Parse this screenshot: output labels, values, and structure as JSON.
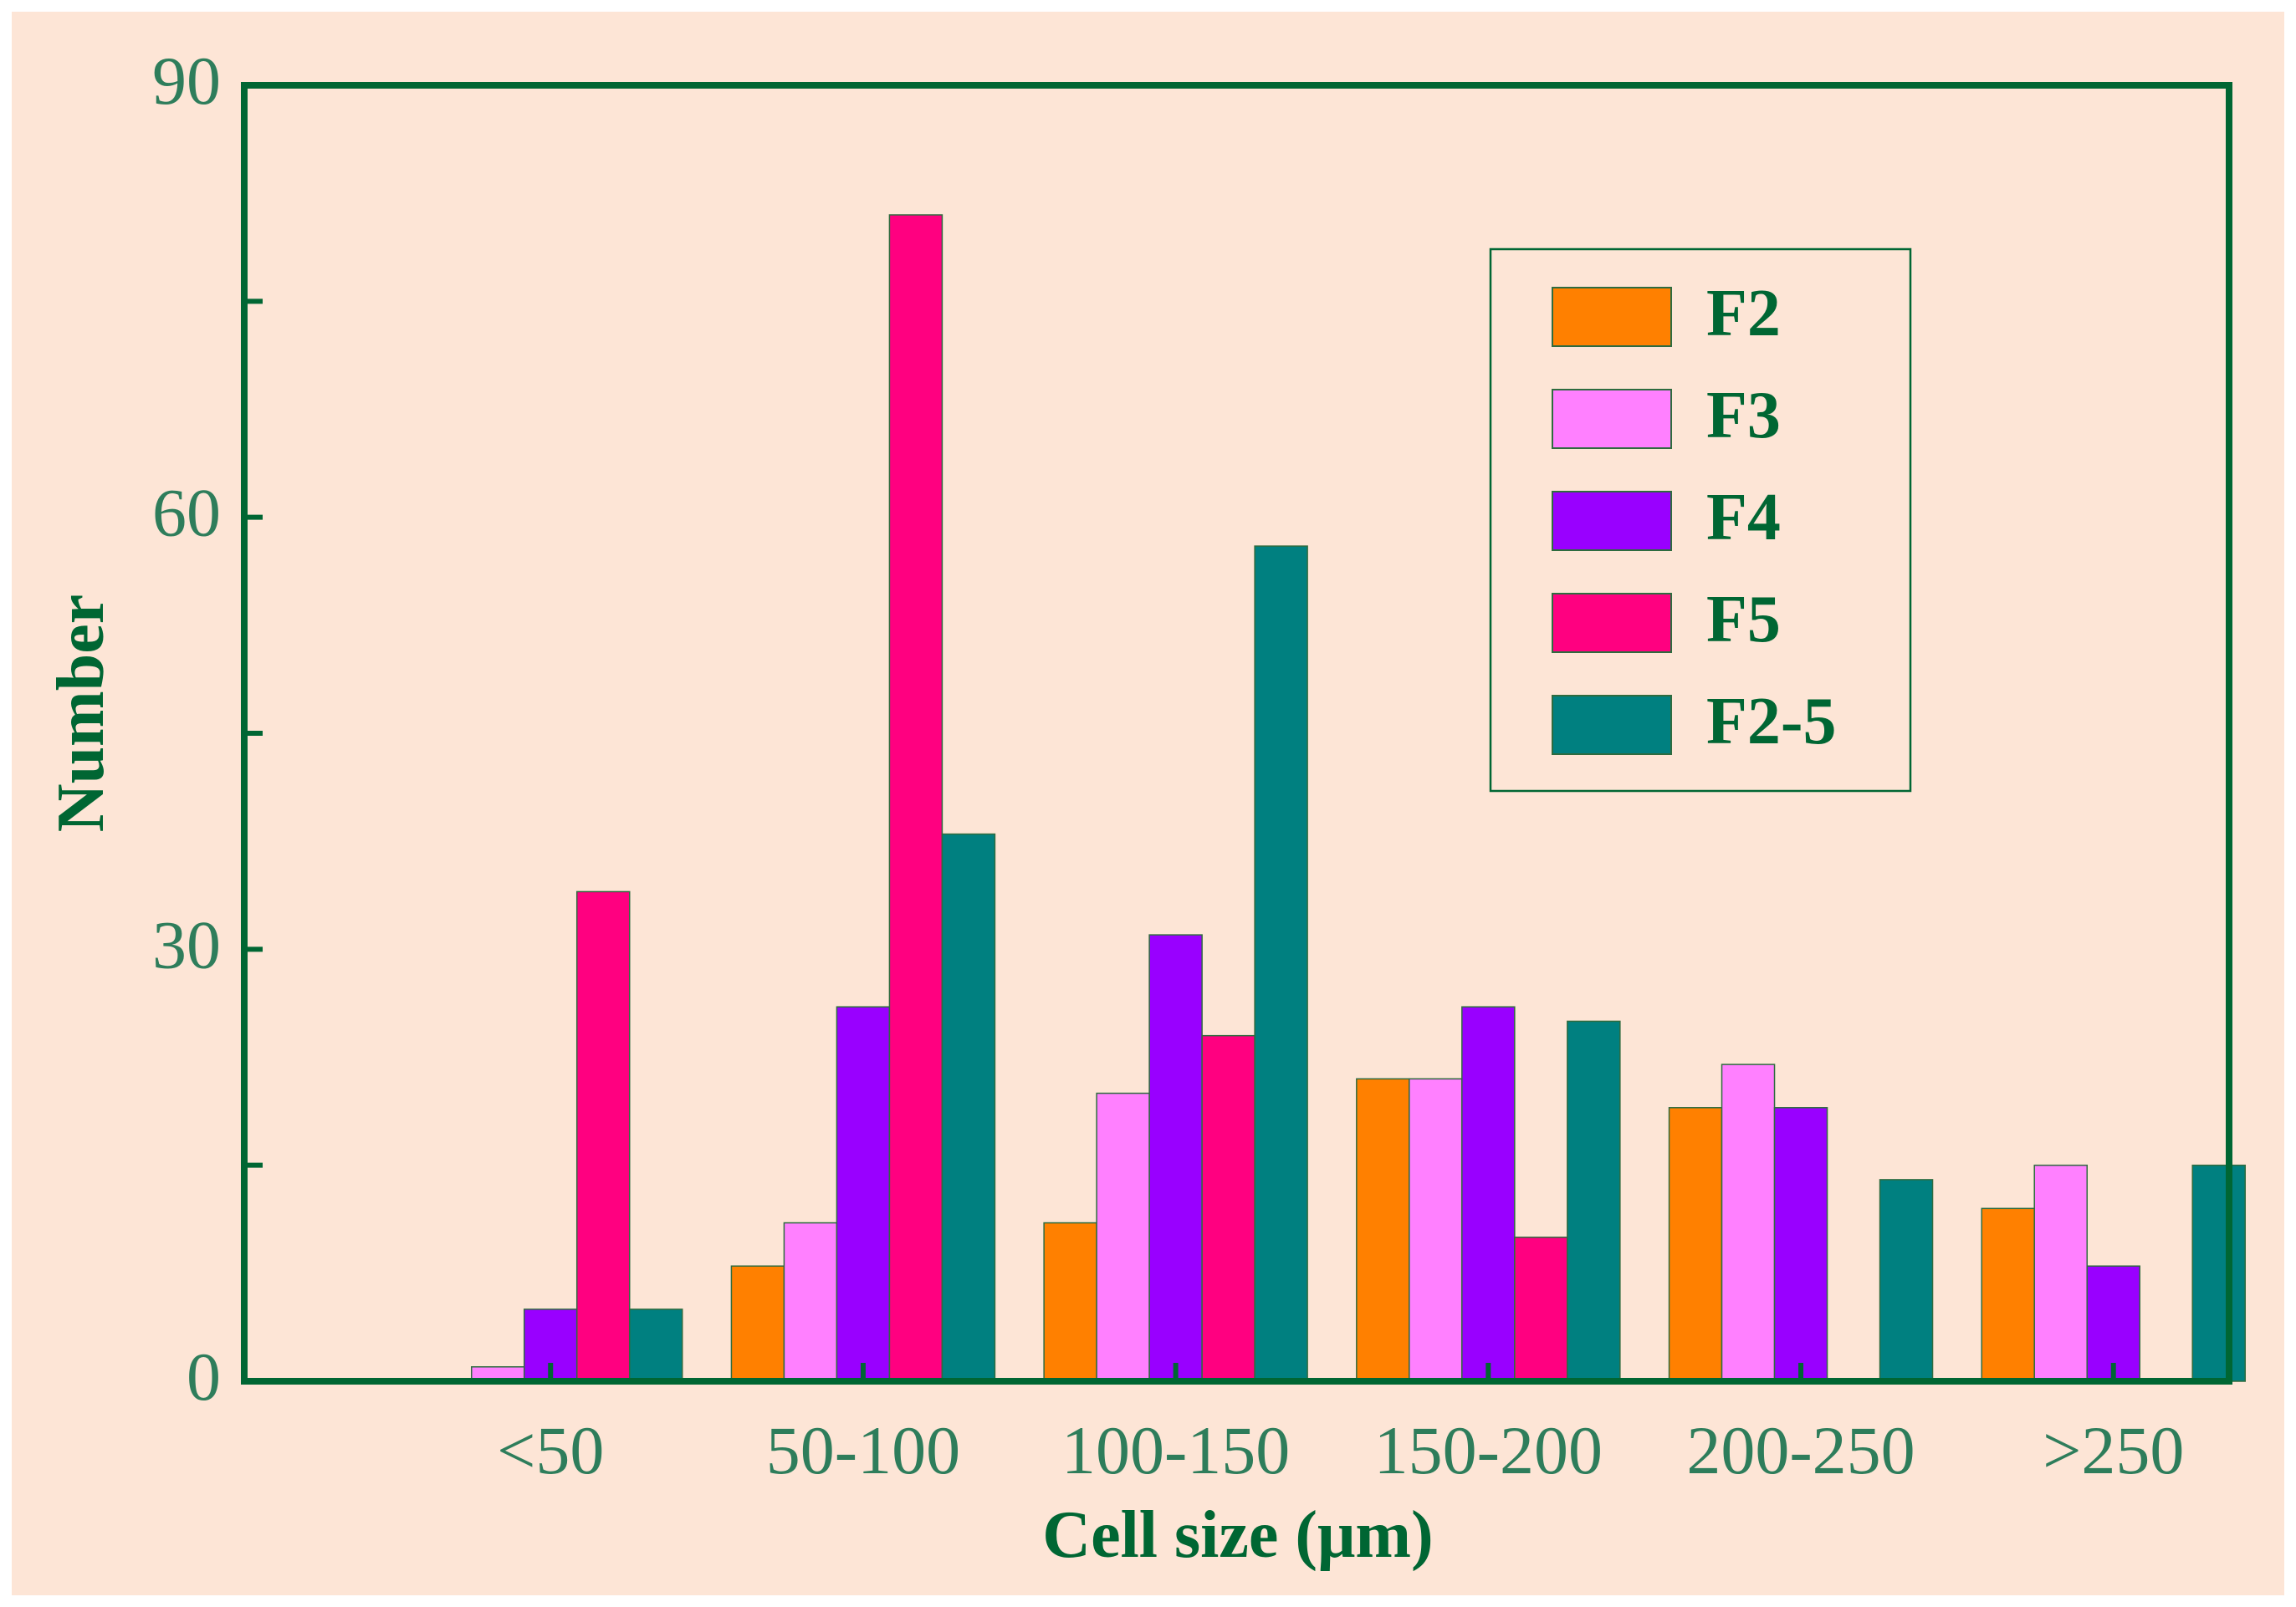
{
  "chart_data": {
    "type": "bar",
    "title": "",
    "xlabel": "Cell size (μm)",
    "ylabel": "Number",
    "categories": [
      "<50",
      "50-100",
      "100-150",
      "150-200",
      "200-250",
      ">250"
    ],
    "series": [
      {
        "name": "F2",
        "color": "#ff8000",
        "values": [
          0,
          8,
          11,
          21,
          19,
          12
        ]
      },
      {
        "name": "F3",
        "color": "#ff80ff",
        "values": [
          1,
          11,
          20,
          21,
          22,
          15
        ]
      },
      {
        "name": "F4",
        "color": "#9900ff",
        "values": [
          5,
          26,
          31,
          26,
          19,
          8
        ]
      },
      {
        "name": "F5",
        "color": "#ff0080",
        "values": [
          34,
          81,
          24,
          10,
          0,
          0
        ]
      },
      {
        "name": "F2-5",
        "color": "#008080",
        "values": [
          5,
          38,
          58,
          25,
          14,
          15
        ]
      }
    ],
    "ylim": [
      0,
      90
    ],
    "yticks": [
      0,
      30,
      60,
      90
    ],
    "ytick_labels": [
      "0",
      "30",
      "60",
      "90"
    ],
    "minor_ytick_step": 15,
    "grid": false,
    "legend_position": "top-right",
    "colors": {
      "background": "#fde5d6",
      "frame": "#006633",
      "tick_label": "#2e7d5b",
      "axis_title": "#006633",
      "legend_text": "#006633",
      "bar_outline": "#2e6b3f"
    }
  }
}
